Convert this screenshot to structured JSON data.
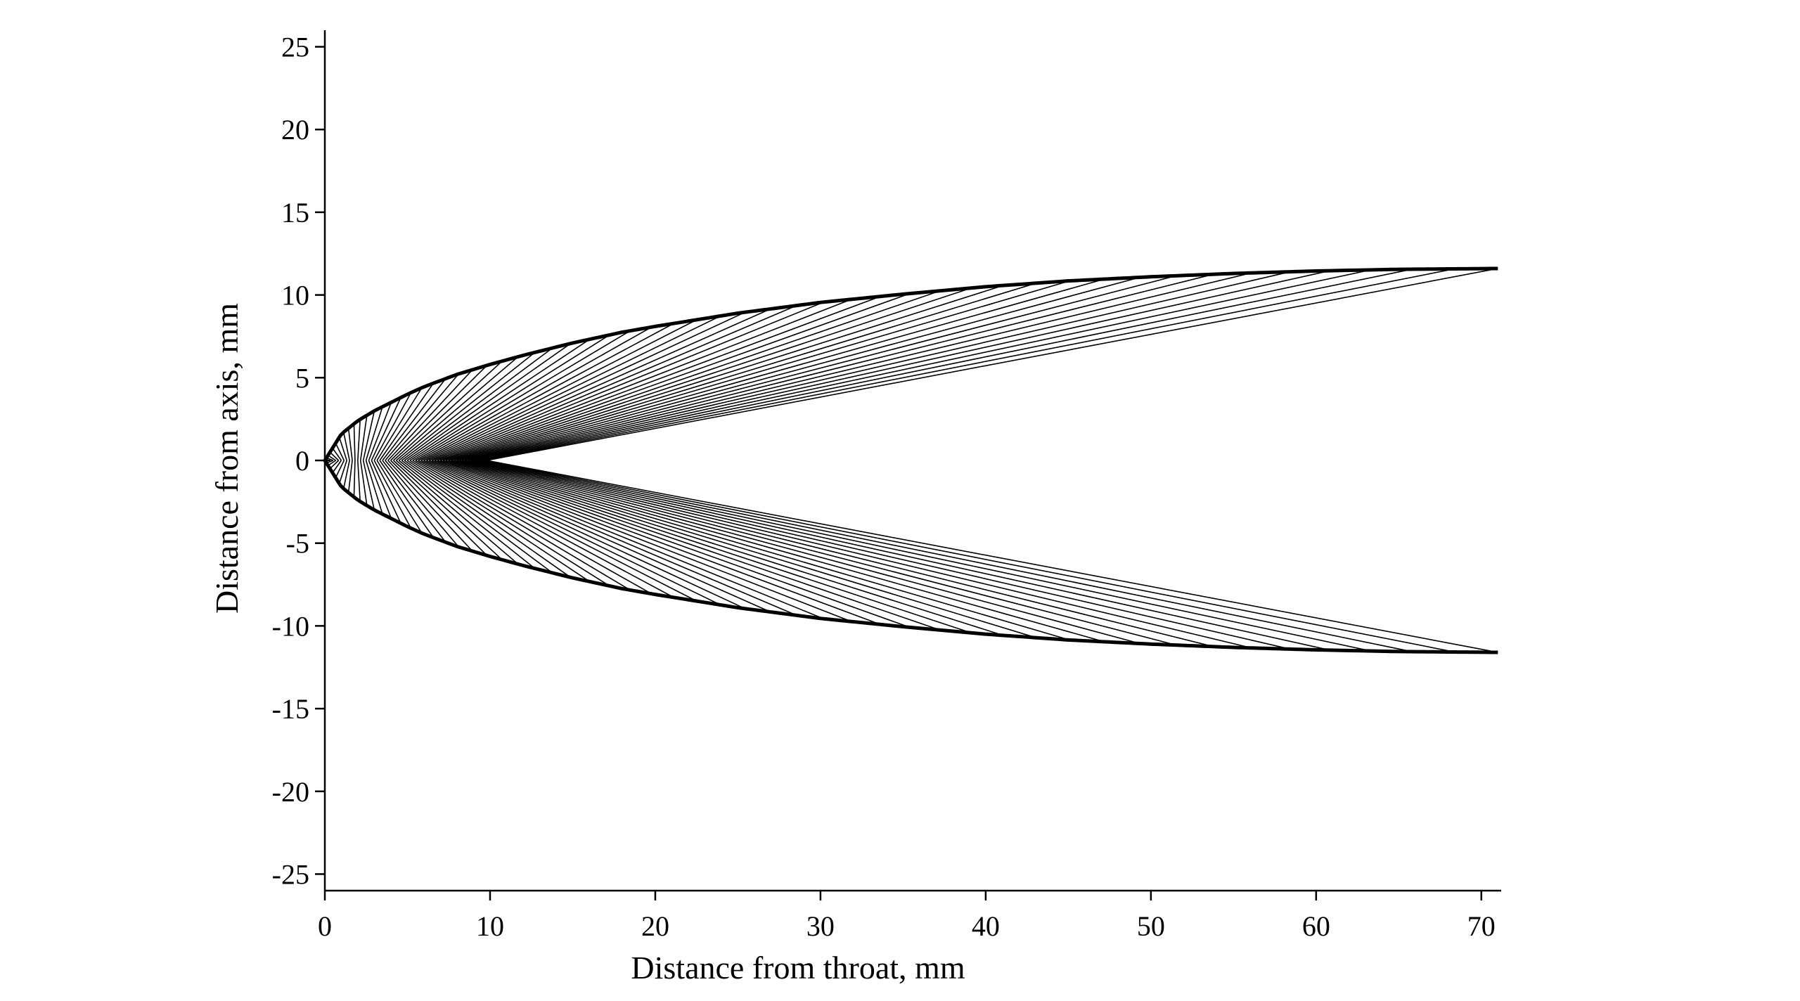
{
  "chart_data": {
    "type": "line",
    "title": "",
    "xlabel": "Distance from throat, mm",
    "ylabel": "Distance from axis, mm",
    "xlim": [
      0,
      71.2
    ],
    "ylim": [
      -26,
      26
    ],
    "x_ticks": [
      0,
      10,
      20,
      30,
      40,
      50,
      60,
      70
    ],
    "x_tick_labels": [
      "0",
      "10",
      "20",
      "30",
      "40",
      "50",
      "60",
      "70"
    ],
    "y_ticks": [
      25,
      20,
      15,
      10,
      5,
      0,
      -5,
      -10,
      -15,
      -20,
      -25
    ],
    "y_tick_labels": [
      "25",
      "20",
      "15",
      "10",
      "5",
      "0",
      "-5",
      "-10",
      "-15",
      "-20",
      "-25"
    ],
    "grid": false,
    "legend": "none",
    "line_color": "#000000",
    "wall_contour": {
      "description_of_shape": "symmetric nozzle wall, upper and lower",
      "x": [
        0,
        1,
        2,
        3,
        4,
        5,
        6,
        8,
        10,
        12,
        15,
        18,
        20,
        25,
        30,
        35,
        40,
        45,
        50,
        55,
        60,
        65,
        71
      ],
      "y": [
        0,
        1.6,
        2.4,
        3.0,
        3.5,
        4.0,
        4.45,
        5.2,
        5.8,
        6.35,
        7.1,
        7.75,
        8.1,
        8.9,
        9.55,
        10.05,
        10.5,
        10.85,
        11.1,
        11.3,
        11.45,
        11.55,
        11.6
      ]
    },
    "characteristic_lines": {
      "count_per_half": 60,
      "axis_start_x_range": [
        0,
        9.8
      ],
      "wall_end_x_range": [
        0,
        71
      ]
    }
  }
}
